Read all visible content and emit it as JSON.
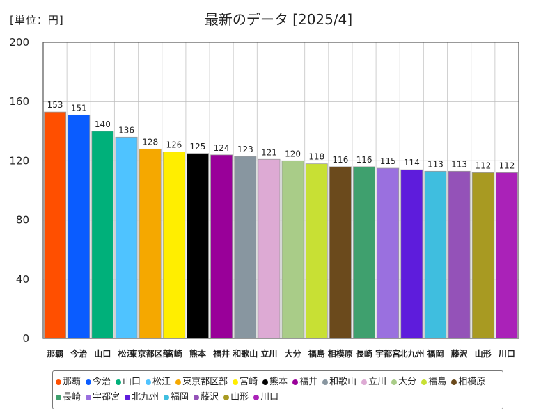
{
  "header": {
    "unit": "[単位：円]"
  },
  "chart_data": {
    "type": "bar",
    "title": "最新のデータ [2025/4]",
    "ylim": [
      0,
      200
    ],
    "yticks": [
      0,
      40,
      80,
      120,
      160,
      200
    ],
    "categories": [
      "那覇",
      "今治",
      "山口",
      "松江",
      "東京都区部",
      "宮崎",
      "熊本",
      "福井",
      "和歌山",
      "立川",
      "大分",
      "福島",
      "相模原",
      "長崎",
      "宇都宮",
      "北九州",
      "福岡",
      "藤沢",
      "山形",
      "川口"
    ],
    "axis_labels": [
      "那覇",
      "今治",
      "山口",
      "松江",
      "東京都区部",
      "宮崎",
      "熊本",
      "福井",
      "和歌山",
      "立川",
      "大分",
      "福島",
      "相模原",
      "長崎",
      "宇都宮",
      "北九州",
      "福岡",
      "藤沢",
      "山形",
      "川口"
    ],
    "values": [
      153,
      151,
      140,
      136,
      128,
      126,
      125,
      124,
      123,
      121,
      120,
      118,
      116,
      116,
      115,
      114,
      113,
      113,
      112,
      112
    ],
    "colors": [
      "#ff4f00",
      "#0a5cff",
      "#00b07a",
      "#4fc3ff",
      "#f5a800",
      "#ffee00",
      "#000000",
      "#990099",
      "#8896a0",
      "#ddaad4",
      "#a9cc88",
      "#c8e034",
      "#6b4a1c",
      "#3fa06e",
      "#9a70df",
      "#5e1cdc",
      "#3fbedf",
      "#9452b8",
      "#a89a22",
      "#aa22b8"
    ],
    "grid": true,
    "legend_position": "bottom"
  }
}
